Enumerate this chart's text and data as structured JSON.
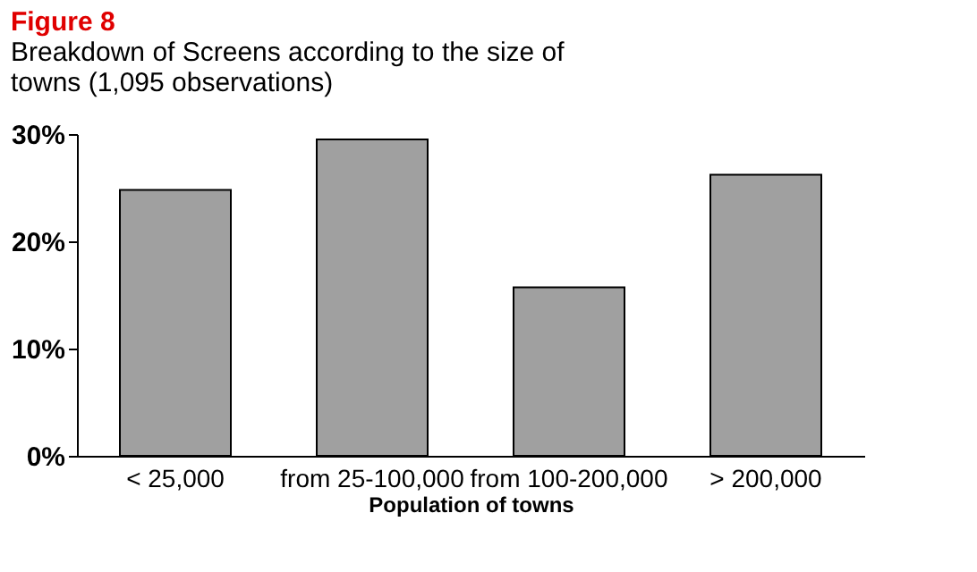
{
  "chart_data": {
    "type": "bar",
    "title": "Figure 8",
    "subtitle": "Breakdown of Screens according to the size of towns (1,095 observations)",
    "xlabel": "Population of towns",
    "categories": [
      "< 25,000",
      "from 25-100,000",
      "from 100-200,000",
      "> 200,000"
    ],
    "values": [
      24.8,
      29.5,
      15.7,
      26.2
    ],
    "color": "#a0a0a0",
    "ylim": [
      0,
      30
    ],
    "yticks": [
      {
        "value": 0,
        "label": "0%"
      },
      {
        "value": 10,
        "label": "10%"
      },
      {
        "value": 20,
        "label": "20%"
      },
      {
        "value": 30,
        "label": "30%"
      }
    ],
    "grid": false
  }
}
